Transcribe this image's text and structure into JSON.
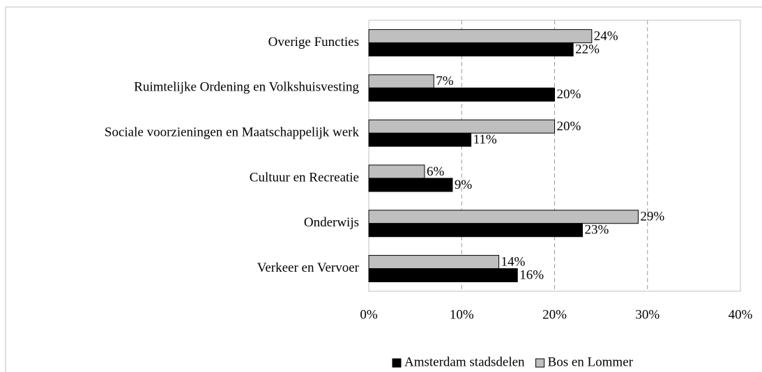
{
  "chart_data": {
    "type": "hbar",
    "categories": [
      "Overige Functies",
      "Ruimtelijke Ordening en Volkshuisvesting",
      "Sociale voorzieningen en Maatschappelijk werk",
      "Cultuur en Recreatie",
      "Onderwijs",
      "Verkeer en Vervoer"
    ],
    "series": [
      {
        "name": "Amsterdam stadsdelen",
        "color": "#000000",
        "values": [
          22,
          20,
          11,
          9,
          23,
          16
        ],
        "value_labels": [
          "22%",
          "20%",
          "11%",
          "9%",
          "23%",
          "16%"
        ]
      },
      {
        "name": "Bos en Lommer",
        "color": "#bfbfbf",
        "values": [
          24,
          7,
          20,
          6,
          29,
          14
        ],
        "value_labels": [
          "24%",
          "7%",
          "20%",
          "6%",
          "29%",
          "14%"
        ]
      }
    ],
    "xlim": [
      0,
      40
    ],
    "xticks": [
      {
        "value": 0,
        "label": "0%"
      },
      {
        "value": 10,
        "label": "10%"
      },
      {
        "value": 20,
        "label": "20%"
      },
      {
        "value": 30,
        "label": "30%"
      },
      {
        "value": 40,
        "label": "40%"
      }
    ],
    "grid": true,
    "legend": "bottom"
  }
}
